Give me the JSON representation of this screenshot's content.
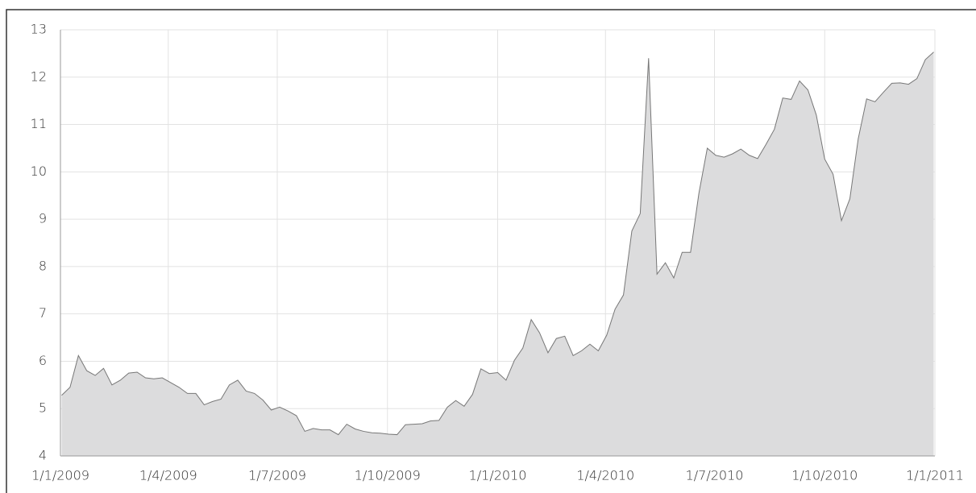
{
  "chart_data": {
    "type": "area",
    "x": [
      "2009-01-02",
      "2009-01-09",
      "2009-01-16",
      "2009-01-23",
      "2009-01-30",
      "2009-02-06",
      "2009-02-13",
      "2009-02-20",
      "2009-02-27",
      "2009-03-06",
      "2009-03-13",
      "2009-03-20",
      "2009-03-27",
      "2009-04-03",
      "2009-04-10",
      "2009-04-17",
      "2009-04-24",
      "2009-05-01",
      "2009-05-08",
      "2009-05-15",
      "2009-05-22",
      "2009-05-29",
      "2009-06-05",
      "2009-06-12",
      "2009-06-19",
      "2009-06-26",
      "2009-07-03",
      "2009-07-10",
      "2009-07-17",
      "2009-07-24",
      "2009-07-31",
      "2009-08-07",
      "2009-08-14",
      "2009-08-21",
      "2009-08-28",
      "2009-09-04",
      "2009-09-11",
      "2009-09-18",
      "2009-09-25",
      "2009-10-02",
      "2009-10-09",
      "2009-10-16",
      "2009-10-23",
      "2009-10-30",
      "2009-11-06",
      "2009-11-13",
      "2009-11-20",
      "2009-11-27",
      "2009-12-04",
      "2009-12-11",
      "2009-12-18",
      "2009-12-25",
      "2010-01-01",
      "2010-01-08",
      "2010-01-15",
      "2010-01-22",
      "2010-01-29",
      "2010-02-05",
      "2010-02-12",
      "2010-02-19",
      "2010-02-26",
      "2010-03-05",
      "2010-03-12",
      "2010-03-19",
      "2010-03-26",
      "2010-04-02",
      "2010-04-09",
      "2010-04-16",
      "2010-04-23",
      "2010-04-30",
      "2010-05-07",
      "2010-05-14",
      "2010-05-21",
      "2010-05-28",
      "2010-06-04",
      "2010-06-11",
      "2010-06-18",
      "2010-06-25",
      "2010-07-02",
      "2010-07-09",
      "2010-07-16",
      "2010-07-23",
      "2010-07-30",
      "2010-08-06",
      "2010-08-13",
      "2010-08-20",
      "2010-08-27",
      "2010-09-03",
      "2010-09-10",
      "2010-09-17",
      "2010-09-24",
      "2010-10-01",
      "2010-10-08",
      "2010-10-15",
      "2010-10-22",
      "2010-10-29",
      "2010-11-05",
      "2010-11-12",
      "2010-11-19",
      "2010-11-26",
      "2010-12-03",
      "2010-12-10",
      "2010-12-17",
      "2010-12-24",
      "2010-12-31"
    ],
    "series": [
      {
        "color": "#dcdcdd",
        "values": [
          5.28,
          5.45,
          6.12,
          5.8,
          5.7,
          5.85,
          5.5,
          5.6,
          5.75,
          5.77,
          5.65,
          5.63,
          5.65,
          5.55,
          5.45,
          5.32,
          5.32,
          5.08,
          5.15,
          5.2,
          5.5,
          5.6,
          5.37,
          5.32,
          5.18,
          4.97,
          5.03,
          4.95,
          4.85,
          4.52,
          4.58,
          4.55,
          4.55,
          4.45,
          4.67,
          4.57,
          4.52,
          4.49,
          4.48,
          4.46,
          4.45,
          4.66,
          4.67,
          4.68,
          4.74,
          4.75,
          5.03,
          5.17,
          5.05,
          5.3,
          5.84,
          5.74,
          5.76,
          5.6,
          6.02,
          6.28,
          6.88,
          6.6,
          6.18,
          6.48,
          6.53,
          6.12,
          6.22,
          6.36,
          6.22,
          6.55,
          7.1,
          7.4,
          8.75,
          9.12,
          12.4,
          7.84,
          8.08,
          7.76,
          8.3,
          8.3,
          9.55,
          10.5,
          10.35,
          10.31,
          10.38,
          10.48,
          10.35,
          10.28,
          10.58,
          10.9,
          11.56,
          11.53,
          11.92,
          11.73,
          11.2,
          10.27,
          9.95,
          8.97,
          9.43,
          10.7,
          11.54,
          11.48,
          11.68,
          11.87,
          11.88,
          11.85,
          11.97,
          12.37,
          12.53
        ]
      }
    ],
    "xlim": [
      "2009-01-01",
      "2011-01-01"
    ],
    "xticks": [
      {
        "value": "2009-01-01",
        "label": "1/1/2009"
      },
      {
        "value": "2009-04-01",
        "label": "1/4/2009"
      },
      {
        "value": "2009-07-01",
        "label": "1/7/2009"
      },
      {
        "value": "2009-10-01",
        "label": "1/10/2009"
      },
      {
        "value": "2010-01-01",
        "label": "1/1/2010"
      },
      {
        "value": "2010-04-01",
        "label": "1/4/2010"
      },
      {
        "value": "2010-07-01",
        "label": "1/7/2010"
      },
      {
        "value": "2010-10-01",
        "label": "1/10/2010"
      },
      {
        "value": "2011-01-01",
        "label": "1/1/2011"
      }
    ],
    "ylim": [
      4,
      13
    ],
    "yticks": [
      4,
      5,
      6,
      7,
      8,
      9,
      10,
      11,
      12,
      13
    ],
    "grid": true,
    "line_color": "#777777"
  }
}
